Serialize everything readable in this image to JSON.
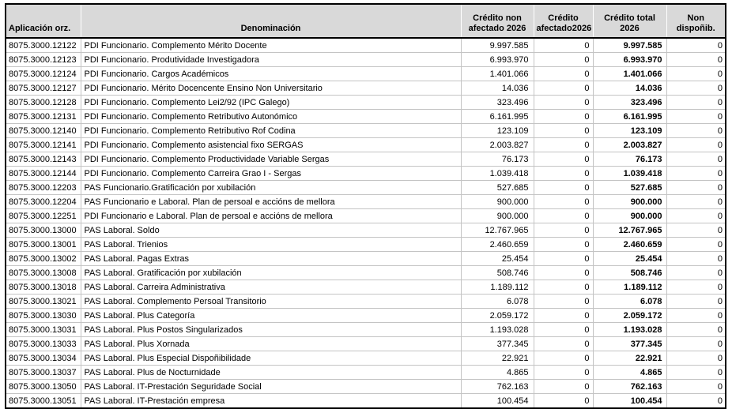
{
  "colors": {
    "header_bg": "#d9d9d9",
    "grid_line": "#c4c4c4",
    "outer_border": "#000000",
    "text": "#000000"
  },
  "table": {
    "columns": [
      {
        "key": "aplicacion",
        "label": "Aplicación orz."
      },
      {
        "key": "denominacion",
        "label": "Denominación"
      },
      {
        "key": "credito_non",
        "label": "Crédito non\nafectado 2026"
      },
      {
        "key": "credito_afectado",
        "label": "Crédito\nafectado2026"
      },
      {
        "key": "credito_total",
        "label": "Crédito total\n2026"
      },
      {
        "key": "non_disponib",
        "label": "Non\ndispoñib."
      }
    ],
    "rows": [
      {
        "aplicacion": "8075.3000.12122",
        "denominacion": "PDI Funcionario. Complemento Mérito Docente",
        "credito_non": "9.997.585",
        "credito_afectado": "0",
        "credito_total": "9.997.585",
        "non_disponib": "0"
      },
      {
        "aplicacion": "8075.3000.12123",
        "denominacion": "PDI Funcionario. Produtividade Investigadora",
        "credito_non": "6.993.970",
        "credito_afectado": "0",
        "credito_total": "6.993.970",
        "non_disponib": "0"
      },
      {
        "aplicacion": "8075.3000.12124",
        "denominacion": "PDI Funcionario. Cargos Académicos",
        "credito_non": "1.401.066",
        "credito_afectado": "0",
        "credito_total": "1.401.066",
        "non_disponib": "0"
      },
      {
        "aplicacion": "8075.3000.12127",
        "denominacion": "PDI Funcionario. Mérito Docencente Ensino Non Universitario",
        "credito_non": "14.036",
        "credito_afectado": "0",
        "credito_total": "14.036",
        "non_disponib": "0"
      },
      {
        "aplicacion": "8075.3000.12128",
        "denominacion": "PDI Funcionario. Complemento Lei2/92 (IPC Galego)",
        "credito_non": "323.496",
        "credito_afectado": "0",
        "credito_total": "323.496",
        "non_disponib": "0"
      },
      {
        "aplicacion": "8075.3000.12131",
        "denominacion": "PDI Funcionario. Complemento Retributivo Autonómico",
        "credito_non": "6.161.995",
        "credito_afectado": "0",
        "credito_total": "6.161.995",
        "non_disponib": "0"
      },
      {
        "aplicacion": "8075.3000.12140",
        "denominacion": "PDI Funcionario. Complemento Retributivo Rof Codina",
        "credito_non": "123.109",
        "credito_afectado": "0",
        "credito_total": "123.109",
        "non_disponib": "0"
      },
      {
        "aplicacion": "8075.3000.12141",
        "denominacion": "PDI Funcionario. Complemento asistencial fixo SERGAS",
        "credito_non": "2.003.827",
        "credito_afectado": "0",
        "credito_total": "2.003.827",
        "non_disponib": "0"
      },
      {
        "aplicacion": "8075.3000.12143",
        "denominacion": "PDI Funcionario. Complemento Productividade Variable Sergas",
        "credito_non": "76.173",
        "credito_afectado": "0",
        "credito_total": "76.173",
        "non_disponib": "0"
      },
      {
        "aplicacion": "8075.3000.12144",
        "denominacion": "PDI Funcionario. Complemento Carreira Grao I - Sergas",
        "credito_non": "1.039.418",
        "credito_afectado": "0",
        "credito_total": "1.039.418",
        "non_disponib": "0"
      },
      {
        "aplicacion": "8075.3000.12203",
        "denominacion": "PAS Funcionario.Gratificación por xubilación",
        "credito_non": "527.685",
        "credito_afectado": "0",
        "credito_total": "527.685",
        "non_disponib": "0"
      },
      {
        "aplicacion": "8075.3000.12204",
        "denominacion": "PAS Funcionario e Laboral. Plan de persoal e accións de mellora",
        "credito_non": "900.000",
        "credito_afectado": "0",
        "credito_total": "900.000",
        "non_disponib": "0"
      },
      {
        "aplicacion": "8075.3000.12251",
        "denominacion": "PDI Funcionario e Laboral. Plan de persoal e accións de mellora",
        "credito_non": "900.000",
        "credito_afectado": "0",
        "credito_total": "900.000",
        "non_disponib": "0"
      },
      {
        "aplicacion": "8075.3000.13000",
        "denominacion": "PAS Laboral. Soldo",
        "credito_non": "12.767.965",
        "credito_afectado": "0",
        "credito_total": "12.767.965",
        "non_disponib": "0"
      },
      {
        "aplicacion": "8075.3000.13001",
        "denominacion": "PAS Laboral. Trienios",
        "credito_non": "2.460.659",
        "credito_afectado": "0",
        "credito_total": "2.460.659",
        "non_disponib": "0"
      },
      {
        "aplicacion": "8075.3000.13002",
        "denominacion": "PAS Laboral. Pagas Extras",
        "credito_non": "25.454",
        "credito_afectado": "0",
        "credito_total": "25.454",
        "non_disponib": "0"
      },
      {
        "aplicacion": "8075.3000.13008",
        "denominacion": "PAS Laboral. Gratificación por xubilación",
        "credito_non": "508.746",
        "credito_afectado": "0",
        "credito_total": "508.746",
        "non_disponib": "0"
      },
      {
        "aplicacion": "8075.3000.13018",
        "denominacion": "PAS Laboral. Carreira Administrativa",
        "credito_non": "1.189.112",
        "credito_afectado": "0",
        "credito_total": "1.189.112",
        "non_disponib": "0"
      },
      {
        "aplicacion": "8075.3000.13021",
        "denominacion": "PAS Laboral. Complemento Persoal Transitorio",
        "credito_non": "6.078",
        "credito_afectado": "0",
        "credito_total": "6.078",
        "non_disponib": "0"
      },
      {
        "aplicacion": "8075.3000.13030",
        "denominacion": "PAS Laboral. Plus Categoría",
        "credito_non": "2.059.172",
        "credito_afectado": "0",
        "credito_total": "2.059.172",
        "non_disponib": "0"
      },
      {
        "aplicacion": "8075.3000.13031",
        "denominacion": "PAS Laboral. Plus Postos Singularizados",
        "credito_non": "1.193.028",
        "credito_afectado": "0",
        "credito_total": "1.193.028",
        "non_disponib": "0"
      },
      {
        "aplicacion": "8075.3000.13033",
        "denominacion": "PAS Laboral. Plus Xornada",
        "credito_non": "377.345",
        "credito_afectado": "0",
        "credito_total": "377.345",
        "non_disponib": "0"
      },
      {
        "aplicacion": "8075.3000.13034",
        "denominacion": "PAS Laboral. Plus Especial  Dispoñibilidade",
        "credito_non": "22.921",
        "credito_afectado": "0",
        "credito_total": "22.921",
        "non_disponib": "0"
      },
      {
        "aplicacion": "8075.3000.13037",
        "denominacion": "PAS Laboral. Plus de Nocturnidade",
        "credito_non": "4.865",
        "credito_afectado": "0",
        "credito_total": "4.865",
        "non_disponib": "0"
      },
      {
        "aplicacion": "8075.3000.13050",
        "denominacion": "PAS Laboral. IT-Prestación Seguridade Social",
        "credito_non": "762.163",
        "credito_afectado": "0",
        "credito_total": "762.163",
        "non_disponib": "0"
      },
      {
        "aplicacion": "8075.3000.13051",
        "denominacion": "PAS Laboral. IT-Prestación empresa",
        "credito_non": "100.454",
        "credito_afectado": "0",
        "credito_total": "100.454",
        "non_disponib": "0"
      }
    ]
  }
}
